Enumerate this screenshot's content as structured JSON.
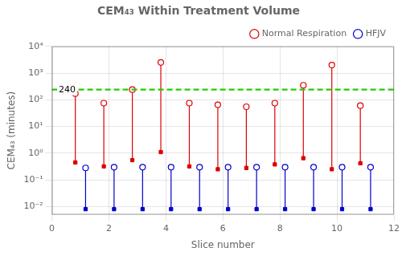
{
  "chart_data": {
    "type": "range",
    "title": "CEM₄₃ Within Treatment Volume",
    "xlabel": "Slice number",
    "ylabel": "CEM₄₃ (minutes)",
    "x": [
      1,
      2,
      3,
      4,
      5,
      6,
      7,
      8,
      9,
      10,
      11
    ],
    "series": [
      {
        "name": "Normal Respiration",
        "color": "#dd0000",
        "high": [
          170,
          75,
          240,
          2500,
          75,
          65,
          55,
          75,
          350,
          2000,
          60
        ],
        "low": [
          0.45,
          0.32,
          0.55,
          1.1,
          0.32,
          0.25,
          0.28,
          0.38,
          0.65,
          0.25,
          0.42
        ]
      },
      {
        "name": "HFJV",
        "color": "#0000cc",
        "high": [
          0.28,
          0.3,
          0.3,
          0.3,
          0.3,
          0.3,
          0.3,
          0.3,
          0.3,
          0.3,
          0.3
        ],
        "low": [
          0.008,
          0.008,
          0.008,
          0.008,
          0.008,
          0.008,
          0.008,
          0.008,
          0.008,
          0.008,
          0.008
        ]
      }
    ],
    "xlim": [
      0,
      12
    ],
    "xticks": [
      0,
      2,
      4,
      6,
      8,
      10,
      12
    ],
    "ylim": [
      0.005011872336272725,
      10000
    ],
    "yticks": [
      {
        "value": 0.01,
        "label": "10⁻²"
      },
      {
        "value": 0.1,
        "label": "10⁻¹"
      },
      {
        "value": 1,
        "label": "10⁰"
      },
      {
        "value": 10,
        "label": "10¹"
      },
      {
        "value": 100,
        "label": "10²"
      },
      {
        "value": 1000,
        "label": "10³"
      },
      {
        "value": 10000,
        "label": "10⁴"
      }
    ],
    "log": "y",
    "grid": true,
    "legend": "upper right",
    "hlines": [
      {
        "value": 240,
        "color": "#22cc00",
        "line_style": "dashed",
        "label": "240"
      }
    ]
  }
}
